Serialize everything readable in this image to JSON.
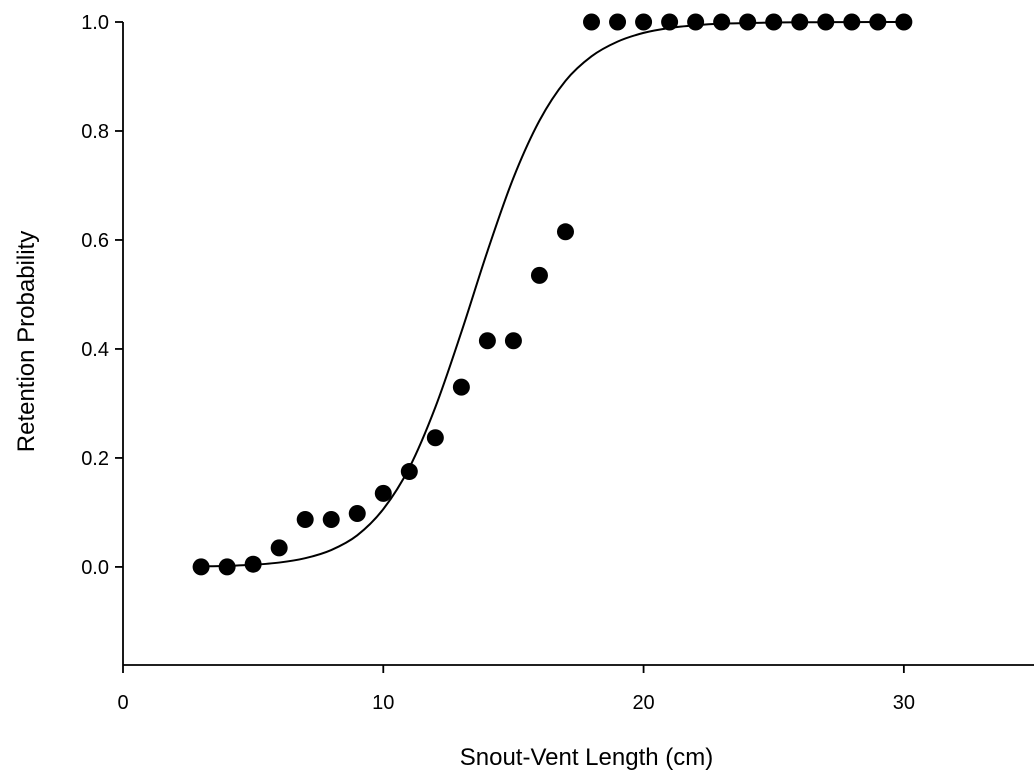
{
  "chart_data": {
    "type": "scatter",
    "title": "",
    "xlabel": "Snout-Vent Length (cm)",
    "ylabel": "Retention Probability",
    "xlim": [
      0,
      35
    ],
    "ylim": [
      -0.18,
      1.0
    ],
    "xticks": [
      0,
      10,
      20,
      30
    ],
    "xtick_labels": [
      "0",
      "10",
      "20",
      "30"
    ],
    "yticks": [
      0.0,
      0.2,
      0.4,
      0.6,
      0.8,
      1.0
    ],
    "ytick_labels": [
      "0.0",
      "0.2",
      "0.4",
      "0.6",
      "0.8",
      "1.0"
    ],
    "grid": false,
    "legend": "none",
    "series": [
      {
        "type": "scatter",
        "x": [
          3,
          4,
          5,
          6,
          7,
          8,
          9,
          10,
          11,
          12,
          13,
          14,
          15,
          16,
          17,
          18,
          19,
          20,
          21,
          22,
          23,
          24,
          25,
          26,
          27,
          28,
          29,
          30
        ],
        "y": [
          0.0,
          0.0,
          0.005,
          0.035,
          0.087,
          0.087,
          0.098,
          0.135,
          0.175,
          0.237,
          0.33,
          0.415,
          0.415,
          0.535,
          0.615,
          1.0,
          1.0,
          1.0,
          1.0,
          1.0,
          1.0,
          1.0,
          1.0,
          1.0,
          1.0,
          1.0,
          1.0,
          1.0
        ]
      },
      {
        "type": "line",
        "x": [
          3,
          4,
          5,
          6,
          7,
          8,
          9,
          10,
          11,
          12,
          13,
          14,
          15,
          16,
          17,
          18,
          19,
          20,
          21,
          22,
          23,
          24,
          25,
          26,
          27,
          28,
          29,
          30
        ],
        "y": [
          0.001,
          0.002,
          0.004,
          0.008,
          0.016,
          0.031,
          0.058,
          0.106,
          0.182,
          0.293,
          0.431,
          0.579,
          0.714,
          0.819,
          0.892,
          0.937,
          0.964,
          0.98,
          0.989,
          0.994,
          0.997,
          0.998,
          0.999,
          0.9995,
          0.9997,
          0.9998,
          0.9999,
          1.0
        ]
      }
    ]
  }
}
